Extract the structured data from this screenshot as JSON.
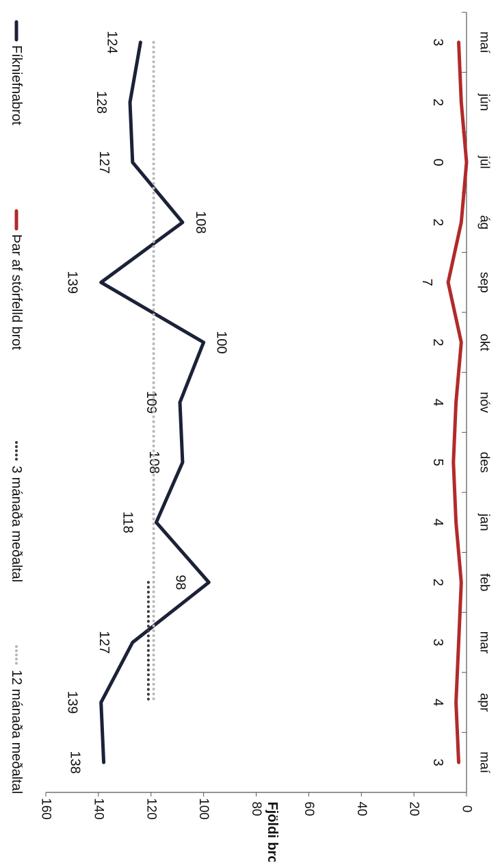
{
  "chart_data": {
    "type": "line",
    "orientation": "rotated-90-clockwise",
    "ylabel": "Fjöldi brota",
    "ylim": [
      0,
      160
    ],
    "yticks": [
      0,
      20,
      40,
      60,
      80,
      100,
      120,
      140,
      160
    ],
    "categories": [
      "maí",
      "jún",
      "júl",
      "ág",
      "sep",
      "okt",
      "nóv",
      "des",
      "jan",
      "feb",
      "mar",
      "apr",
      "maí"
    ],
    "legend_position": "top",
    "series": [
      {
        "name": "Fíkniefnabrot",
        "color": "#1b2238",
        "style": "solid",
        "values": [
          124,
          128,
          127,
          108,
          139,
          100,
          109,
          108,
          118,
          98,
          127,
          139,
          138
        ],
        "labels": [
          "124",
          "128",
          "127",
          "108",
          "139",
          "100",
          "109",
          "108",
          "118",
          "98",
          "127",
          "139",
          "138"
        ]
      },
      {
        "name": "Þar af stórfelld brot",
        "color": "#b22a2a",
        "style": "solid",
        "values": [
          3,
          2,
          0,
          2,
          7,
          2,
          4,
          5,
          4,
          2,
          3,
          4,
          3
        ],
        "labels": [
          "3",
          "2",
          "0",
          "2",
          "7",
          "2",
          "4",
          "5",
          "4",
          "2",
          "3",
          "4",
          "3"
        ]
      },
      {
        "name": "3 mánaða meðaltal",
        "color": "#3b3b3b",
        "style": "dotted",
        "values": [
          null,
          null,
          null,
          null,
          null,
          null,
          null,
          null,
          null,
          121,
          121,
          121,
          null
        ]
      },
      {
        "name": "12 mánaða meðaltal",
        "color": "#b8b8b8",
        "style": "dotted",
        "values": [
          119,
          119,
          119,
          119,
          119,
          119,
          119,
          119,
          119,
          119,
          119,
          119,
          null
        ]
      }
    ]
  }
}
